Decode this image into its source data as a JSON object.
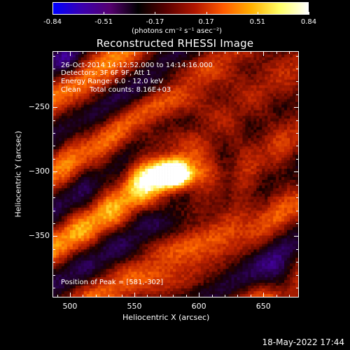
{
  "colorbar": {
    "ticks": [
      "-0.84",
      "-0.51",
      "-0.17",
      "0.17",
      "0.51",
      "0.84"
    ],
    "unit_text": "(photons cm⁻² s⁻¹ asec⁻²)",
    "colormap": [
      "#0000ff",
      "#3a00b0",
      "#550070",
      "#000000",
      "#5a0000",
      "#b01500",
      "#ff5a00",
      "#ffb000",
      "#ffff66",
      "#ffffff"
    ]
  },
  "header": {
    "title": "Reconstructed RHESSI Image"
  },
  "annotations": {
    "time_range": "26-Oct-2014 14:12:52.000 to 14:14:16.000",
    "detectors": "Detectors: 3F 6F 9F, Att 1",
    "energy_range": "Energy Range: 6.0 - 12.0 keV",
    "method_counts": "Clean    Total counts: 8.16E+03",
    "peak_position": "Position of Peak = [581,-302]"
  },
  "chart_data": {
    "type": "heatmap",
    "title": "Reconstructed RHESSI Image",
    "xlabel": "Heliocentric X (arcsec)",
    "ylabel": "Heliocentric Y (arcsec)",
    "xlim": [
      487,
      677
    ],
    "ylim": [
      -397,
      -207
    ],
    "xticks": [
      500,
      550,
      600,
      650
    ],
    "yticks": [
      -250,
      -300,
      -350
    ],
    "value_range": [
      -0.84,
      0.84
    ],
    "peak": [
      581,
      -302
    ]
  },
  "footer": {
    "timestamp": "18-May-2022 17:44"
  }
}
